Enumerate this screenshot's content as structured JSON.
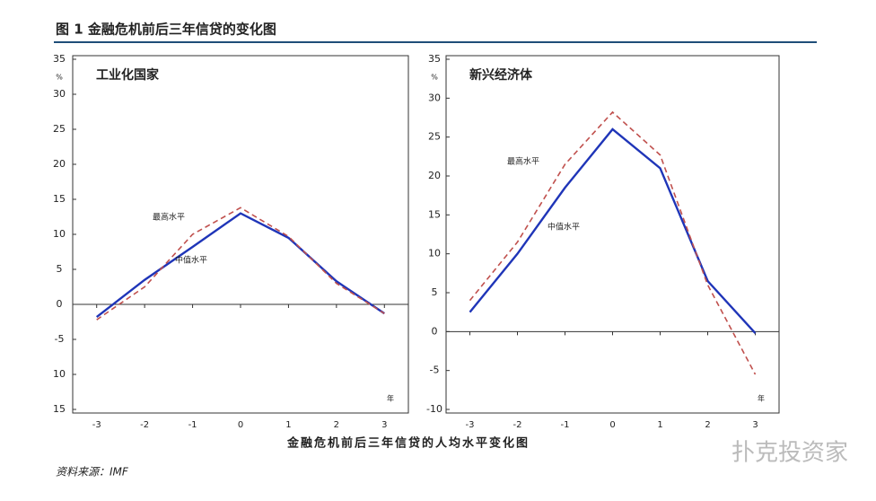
{
  "title": "图 1  金融危机前后三年信贷的变化图",
  "x_axis_title": "金融危机前后三年信贷的人均水平变化图",
  "source": "资料来源：IMF",
  "watermark": "扑克投资家",
  "chart_data": [
    {
      "type": "line",
      "title": "工业化国家",
      "y_unit": "%",
      "x_unit": "年",
      "x": [
        -3,
        -2,
        -1,
        0,
        1,
        2,
        3
      ],
      "xlim": [
        -3.5,
        3.5
      ],
      "xticks": [
        -3,
        -2,
        -1,
        0,
        1,
        2,
        3
      ],
      "ylim": [
        -15,
        35
      ],
      "yticks": [
        {
          "value": -15,
          "label": "15"
        },
        {
          "value": -10,
          "label": "10"
        },
        -5,
        0,
        5,
        10,
        15,
        20,
        25,
        30,
        35
      ],
      "series": [
        {
          "name": "中值水平",
          "color": "#1f35b8",
          "dash": false,
          "values": [
            -1.8,
            3.5,
            8.2,
            13,
            9.5,
            3.3,
            -1.3
          ]
        },
        {
          "name": "最高水平",
          "color": "#c0504d",
          "dash": true,
          "values": [
            -2.2,
            2.5,
            10,
            13.8,
            9.7,
            3.0,
            -1.3
          ]
        }
      ]
    },
    {
      "type": "line",
      "title": "新兴经济体",
      "y_unit": "%",
      "x_unit": "年",
      "x": [
        -3,
        -2,
        -1,
        0,
        1,
        2,
        3
      ],
      "xlim": [
        -3.5,
        3.5
      ],
      "xticks": [
        -3,
        -2,
        -1,
        0,
        1,
        2,
        3
      ],
      "ylim": [
        -10,
        35
      ],
      "yticks": [
        -10,
        -5,
        0,
        5,
        10,
        15,
        20,
        25,
        30,
        35
      ],
      "series": [
        {
          "name": "中值水平",
          "color": "#1f35b8",
          "dash": false,
          "values": [
            2.5,
            10,
            18.5,
            26,
            21,
            6.5,
            -0.2
          ]
        },
        {
          "name": "最高水平",
          "color": "#c0504d",
          "dash": true,
          "values": [
            4,
            11.5,
            21.5,
            28.2,
            22.7,
            6,
            -5.5
          ]
        }
      ]
    }
  ]
}
